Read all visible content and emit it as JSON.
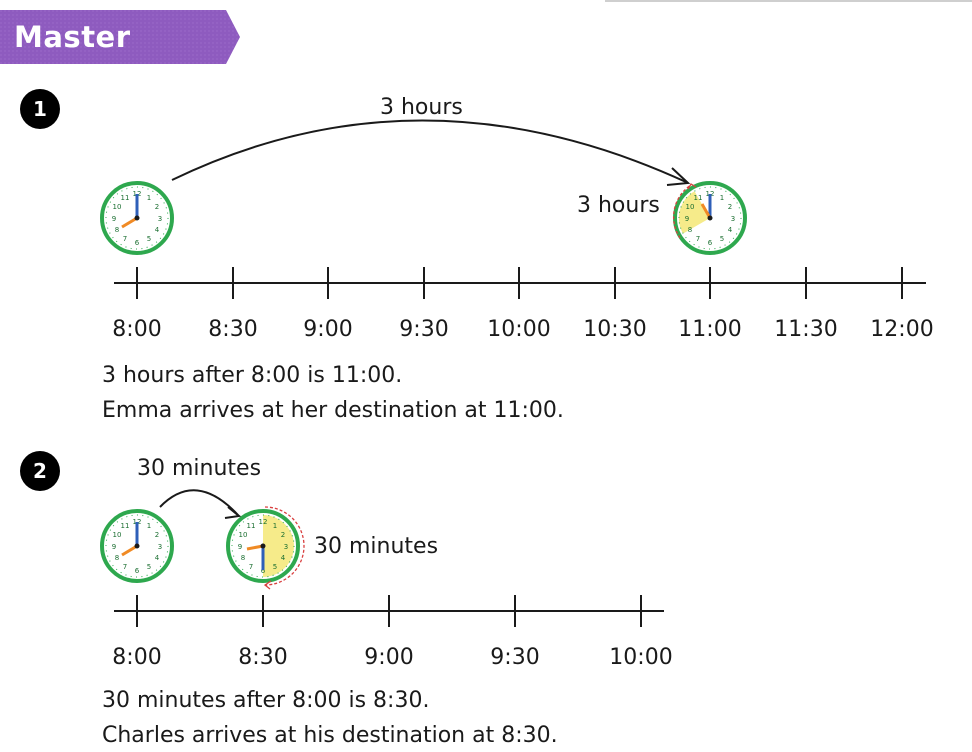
{
  "header": {
    "title": "Master",
    "banner_color": "#8e5bbf"
  },
  "q1": {
    "number": "1",
    "jump_label": "3 hours",
    "clock_label": "3 hours",
    "start_clock": "8:00",
    "end_clock": "11:00",
    "timeline_ticks": [
      "8:00",
      "8:30",
      "9:00",
      "9:30",
      "10:00",
      "10:30",
      "11:00",
      "11:30",
      "12:00"
    ],
    "answer_line_1": "3 hours after 8:00 is 11:00.",
    "answer_line_2": "Emma arrives at her destination at 11:00."
  },
  "q2": {
    "number": "2",
    "jump_label": "30 minutes",
    "clock_label": "30 minutes",
    "start_clock": "8:00",
    "end_clock": "8:30",
    "timeline_ticks": [
      "8:00",
      "8:30",
      "9:00",
      "9:30",
      "10:00"
    ],
    "answer_line_1": "30 minutes after 8:00 is 8:30.",
    "answer_line_2": "Charles arrives at his destination at 8:30."
  },
  "colors": {
    "clock_rim": "#2ea84e",
    "hour_hand": "#f08a24",
    "minute_hand": "#2f5fb8",
    "elapsed_fill": "#f6eb8a",
    "arc_arrow": "#d94040"
  }
}
